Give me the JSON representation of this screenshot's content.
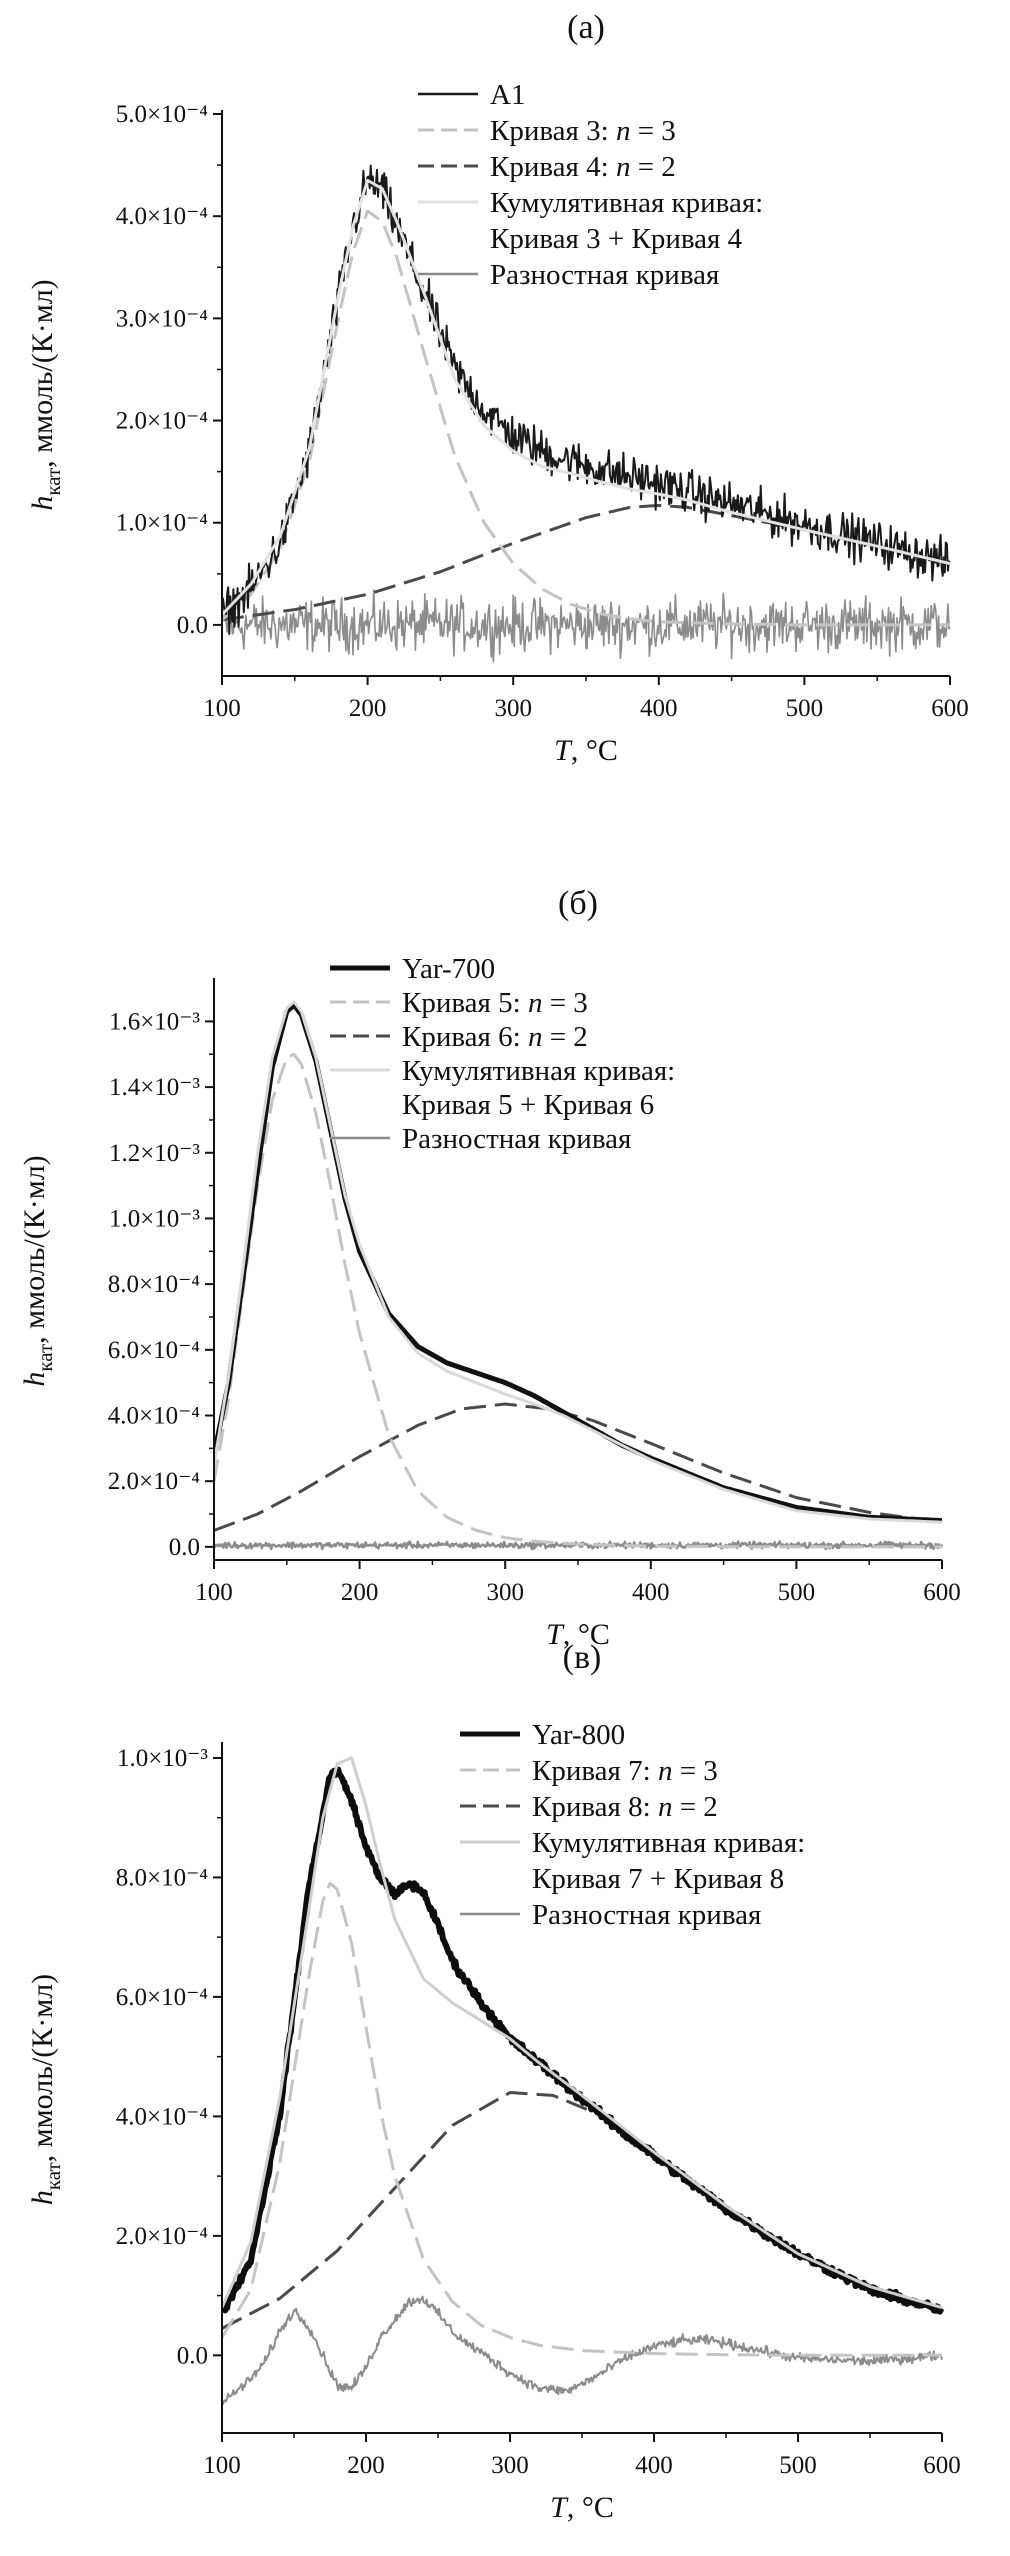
{
  "page": {
    "background": "#ffffff"
  },
  "chart_data": [
    {
      "panel_label": "(а)",
      "type": "line",
      "xlabel": "T, °C",
      "ylabel": "h_кат, ммоль/(К·мл)",
      "xlim": [
        100,
        600
      ],
      "ylim": [
        -5e-05,
        0.0005
      ],
      "xticks": [
        100,
        200,
        300,
        400,
        500,
        600
      ],
      "yticks": [
        0,
        0.0001,
        0.0002,
        0.0003,
        0.0004,
        0.0005
      ],
      "ytick_labels": [
        "0.0",
        "1.0×10⁻⁴",
        "2.0×10⁻⁴",
        "3.0×10⁻⁴",
        "4.0×10⁻⁴",
        "5.0×10⁻⁴"
      ],
      "xtick_labels": [
        "100",
        "200",
        "300",
        "400",
        "500",
        "600"
      ],
      "grid": false,
      "legend_placement": "top-right",
      "series": [
        {
          "name": "A1",
          "color": "#1a1a1a",
          "dash": "solid",
          "width": 2,
          "noisy": true,
          "noise": 1.8e-05,
          "x": [
            100,
            120,
            140,
            160,
            180,
            190,
            200,
            210,
            220,
            240,
            260,
            280,
            300,
            320,
            340,
            360,
            380,
            400,
            420,
            450,
            500,
            550,
            600
          ],
          "y": [
            1e-05,
            3.5e-05,
            8e-05,
            0.00017,
            0.00032,
            0.00039,
            0.000435,
            0.000425,
            0.00039,
            0.00032,
            0.00025,
            0.00021,
            0.000185,
            0.00017,
            0.00016,
            0.000152,
            0.000145,
            0.000138,
            0.00013,
            0.000118,
            9.8e-05,
            8e-05,
            6e-05
          ]
        },
        {
          "name": "Кривая 3: n = 3",
          "color": "#c4c4c4",
          "dash": "dashed",
          "width": 3,
          "x": [
            100,
            120,
            140,
            160,
            180,
            190,
            200,
            210,
            220,
            240,
            260,
            280,
            300,
            320,
            340,
            360,
            380,
            400,
            450,
            500,
            550,
            600
          ],
          "y": [
            5e-06,
            3e-05,
            7.5e-05,
            0.00016,
            0.0003,
            0.000365,
            0.000405,
            0.000395,
            0.00036,
            0.00026,
            0.000165,
            0.0001,
            6e-05,
            3.5e-05,
            2e-05,
            1.1e-05,
            6e-06,
            3e-06,
            1e-06,
            0.0,
            0.0,
            0.0
          ]
        },
        {
          "name": "Кривая 4: n = 2",
          "color": "#4a4a4a",
          "dash": "dashed",
          "width": 3,
          "x": [
            100,
            150,
            200,
            250,
            300,
            350,
            380,
            400,
            420,
            450,
            500,
            550,
            600
          ],
          "y": [
            5e-06,
            1.5e-05,
            3e-05,
            5.2e-05,
            8e-05,
            0.000105,
            0.000115,
            0.000117,
            0.000115,
            0.000107,
            9.3e-05,
            7.7e-05,
            6e-05
          ]
        },
        {
          "name": "Кумулятивная кривая:",
          "name2": "Кривая 3 + Кривая 4",
          "color": "#e2e2e2",
          "dash": "solid",
          "width": 3,
          "x": [
            100,
            120,
            140,
            160,
            180,
            190,
            200,
            210,
            220,
            240,
            260,
            280,
            300,
            320,
            340,
            360,
            380,
            400,
            420,
            450,
            500,
            550,
            600
          ],
          "y": [
            1e-05,
            4e-05,
            8.7e-05,
            0.000173,
            0.000323,
            0.00039,
            0.000435,
            0.000427,
            0.000395,
            0.00032,
            0.00024,
            0.000195,
            0.00017,
            0.000155,
            0.000148,
            0.00014,
            0.000133,
            0.000128,
            0.000122,
            0.00011,
            9.3e-05,
            7.7e-05,
            6e-05
          ]
        },
        {
          "name": "Разностная кривая",
          "color": "#8c8c8c",
          "dash": "solid",
          "width": 1.6,
          "noisy": true,
          "noise": 2.2e-05,
          "x": [
            100,
            600
          ],
          "y": [
            0,
            0
          ]
        }
      ]
    },
    {
      "panel_label": "(б)",
      "type": "line",
      "xlabel": "T, °C",
      "ylabel": "h_кат, ммоль/(К·мл)",
      "xlim": [
        100,
        600
      ],
      "ylim": [
        -4e-05,
        0.00172
      ],
      "xticks": [
        100,
        200,
        300,
        400,
        500,
        600
      ],
      "yticks": [
        0,
        0.0002,
        0.0004,
        0.0006,
        0.0008,
        0.001,
        0.0012,
        0.0014,
        0.0016
      ],
      "ytick_labels": [
        "0.0",
        "2.0×10⁻⁴",
        "4.0×10⁻⁴",
        "6.0×10⁻⁴",
        "8.0×10⁻⁴",
        "1.0×10⁻³",
        "1.2×10⁻³",
        "1.4×10⁻³",
        "1.6×10⁻³"
      ],
      "xtick_labels": [
        "100",
        "200",
        "300",
        "400",
        "500",
        "600"
      ],
      "grid": false,
      "legend_placement": "top-right",
      "series": [
        {
          "name": "Yar-700",
          "color": "#111111",
          "dash": "solid",
          "width": 5,
          "x": [
            100,
            110,
            120,
            130,
            140,
            150,
            155,
            160,
            170,
            180,
            190,
            200,
            220,
            240,
            260,
            280,
            300,
            320,
            340,
            360,
            380,
            400,
            450,
            500,
            550,
            600
          ],
          "y": [
            0.00028,
            0.0005,
            0.00082,
            0.00115,
            0.00146,
            0.00163,
            0.00165,
            0.00162,
            0.00148,
            0.00127,
            0.00106,
            0.0009,
            0.00071,
            0.00061,
            0.00056,
            0.00053,
            0.0005,
            0.00046,
            0.00041,
            0.00036,
            0.00031,
            0.00027,
            0.00018,
            0.00012,
            9e-05,
            8e-05
          ]
        },
        {
          "name": "Кривая 5: n = 3",
          "color": "#c4c4c4",
          "dash": "dashed",
          "width": 3,
          "x": [
            100,
            110,
            120,
            130,
            140,
            150,
            155,
            160,
            170,
            180,
            190,
            200,
            220,
            240,
            260,
            280,
            300,
            320,
            350,
            400,
            450,
            500,
            600
          ],
          "y": [
            0.0002,
            0.00045,
            0.00078,
            0.0011,
            0.00136,
            0.00149,
            0.0015,
            0.00147,
            0.00132,
            0.0011,
            0.00086,
            0.00065,
            0.00034,
            0.00017,
            9e-05,
            5e-05,
            2.8e-05,
            1.7e-05,
            8e-06,
            2e-06,
            1e-06,
            0.0,
            0.0
          ]
        },
        {
          "name": "Кривая 6: n = 2",
          "color": "#4a4a4a",
          "dash": "dashed",
          "width": 3,
          "x": [
            100,
            130,
            160,
            200,
            240,
            270,
            300,
            330,
            360,
            400,
            450,
            500,
            550,
            600
          ],
          "y": [
            5e-05,
            0.0001,
            0.00017,
            0.000275,
            0.00037,
            0.00042,
            0.000435,
            0.00042,
            0.000385,
            0.000315,
            0.000225,
            0.00015,
            0.000105,
            7.5e-05
          ]
        },
        {
          "name": "Кумулятивная кривая:",
          "name2": "Кривая 5 + Кривая 6",
          "color": "#d9d9d9",
          "dash": "solid",
          "width": 3,
          "x": [
            100,
            110,
            120,
            130,
            140,
            150,
            155,
            160,
            170,
            180,
            190,
            200,
            220,
            240,
            260,
            280,
            300,
            320,
            340,
            360,
            380,
            400,
            450,
            500,
            550,
            600
          ],
          "y": [
            0.00025,
            0.00052,
            0.00085,
            0.0012,
            0.00149,
            0.00164,
            0.00166,
            0.00163,
            0.00149,
            0.00128,
            0.00107,
            0.00092,
            0.0007,
            0.00059,
            0.000535,
            0.0005,
            0.000465,
            0.000435,
            0.0004,
            0.000355,
            0.00031,
            0.000265,
            0.000175,
            0.00011,
            8.5e-05,
            7.5e-05
          ]
        },
        {
          "name": "Разностная кривая",
          "color": "#8c8c8c",
          "dash": "solid",
          "width": 2.5,
          "noisy": true,
          "noise": 8e-06,
          "x": [
            100,
            600
          ],
          "y": [
            5e-06,
            5e-06
          ]
        }
      ]
    },
    {
      "panel_label": "(в)",
      "type": "line",
      "xlabel": "T, °C",
      "ylabel": "h_кат, ммоль/(К·мл)",
      "xlim": [
        100,
        600
      ],
      "ylim": [
        -0.00013,
        0.00102
      ],
      "xticks": [
        100,
        200,
        300,
        400,
        500,
        600
      ],
      "yticks": [
        0,
        0.0002,
        0.0004,
        0.0006,
        0.0008,
        0.001
      ],
      "ytick_labels": [
        "0.0",
        "2.0×10⁻⁴",
        "4.0×10⁻⁴",
        "6.0×10⁻⁴",
        "8.0×10⁻⁴",
        "1.0×10⁻³"
      ],
      "xtick_labels": [
        "100",
        "200",
        "300",
        "400",
        "500",
        "600"
      ],
      "grid": false,
      "legend_placement": "top-right",
      "series": [
        {
          "name": "Yar-800",
          "color": "#0d0d0d",
          "dash": "solid",
          "width": 6,
          "noisy": true,
          "noise": 6e-06,
          "x": [
            100,
            120,
            140,
            160,
            175,
            180,
            190,
            200,
            210,
            220,
            230,
            240,
            250,
            260,
            280,
            300,
            320,
            340,
            360,
            380,
            400,
            450,
            500,
            550,
            600
          ],
          "y": [
            7e-05,
            0.00016,
            0.0004,
            0.00078,
            0.00097,
            0.00098,
            0.00093,
            0.00085,
            0.0008,
            0.00077,
            0.00079,
            0.000775,
            0.00072,
            0.00066,
            0.00059,
            0.00053,
            0.00049,
            0.00045,
            0.00041,
            0.00037,
            0.000335,
            0.000245,
            0.00017,
            0.00011,
            7.5e-05
          ]
        },
        {
          "name": "Кривая 7: n = 3",
          "color": "#c4c4c4",
          "dash": "dashed",
          "width": 3,
          "x": [
            100,
            120,
            140,
            160,
            170,
            175,
            180,
            190,
            200,
            210,
            220,
            240,
            260,
            280,
            300,
            320,
            350,
            400,
            450,
            500,
            600
          ],
          "y": [
            3e-05,
            0.00011,
            0.00032,
            0.00063,
            0.00076,
            0.00079,
            0.00078,
            0.00069,
            0.00055,
            0.00041,
            0.0003,
            0.00016,
            9e-05,
            5e-05,
            3e-05,
            1.7e-05,
            8e-06,
            3e-06,
            1e-06,
            0.0,
            0.0
          ]
        },
        {
          "name": "Кривая 8: n = 2",
          "color": "#4a4a4a",
          "dash": "dashed",
          "width": 3,
          "x": [
            100,
            140,
            180,
            220,
            260,
            300,
            330,
            360,
            400,
            450,
            500,
            550,
            600
          ],
          "y": [
            4.5e-05,
            9.5e-05,
            0.000175,
            0.00028,
            0.000385,
            0.00044,
            0.000435,
            0.000405,
            0.00034,
            0.00025,
            0.00017,
            0.000115,
            8e-05
          ]
        },
        {
          "name": "Кумулятивная кривая:",
          "name2": "Кривая 7 + Кривая 8",
          "color": "#cfcfcf",
          "dash": "solid",
          "width": 3,
          "x": [
            100,
            120,
            140,
            160,
            170,
            180,
            190,
            200,
            210,
            220,
            240,
            260,
            280,
            300,
            320,
            350,
            400,
            450,
            500,
            550,
            600
          ],
          "y": [
            8e-05,
            0.00019,
            0.00043,
            0.00074,
            0.0009,
            0.00099,
            0.001,
            0.00092,
            0.00082,
            0.00073,
            0.00063,
            0.00059,
            0.00056,
            0.00053,
            0.00049,
            0.000435,
            0.00034,
            0.00025,
            0.00017,
            0.000115,
            8e-05
          ]
        },
        {
          "name": "Разностная кривая",
          "color": "#8c8c8c",
          "dash": "solid",
          "width": 2,
          "noisy": true,
          "noise": 7e-06,
          "x": [
            100,
            110,
            120,
            130,
            140,
            150,
            160,
            170,
            180,
            190,
            200,
            210,
            220,
            230,
            240,
            250,
            260,
            270,
            280,
            300,
            320,
            340,
            360,
            380,
            400,
            420,
            440,
            460,
            480,
            500,
            550,
            600
          ],
          "y": [
            -8e-05,
            -6e-05,
            -4e-05,
            -1e-05,
            4e-05,
            7.5e-05,
            5e-05,
            0.0,
            -5e-05,
            -5.5e-05,
            -2e-05,
            3e-05,
            6e-05,
            9e-05,
            9.5e-05,
            7e-05,
            4e-05,
            2e-05,
            5e-06,
            -3e-05,
            -5.5e-05,
            -6e-05,
            -3.5e-05,
            -5e-06,
            1.5e-05,
            2.5e-05,
            2.5e-05,
            1.5e-05,
            5e-06,
            -5e-06,
            -1e-05,
            0.0
          ]
        }
      ]
    }
  ]
}
